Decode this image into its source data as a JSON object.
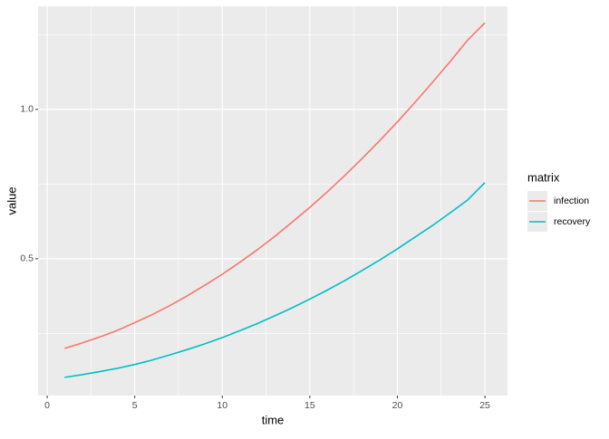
{
  "chart_data": {
    "type": "line",
    "x_label": "time",
    "y_label": "value",
    "x": [
      1,
      2,
      3,
      4,
      5,
      6,
      7,
      8,
      9,
      10,
      11,
      12,
      13,
      14,
      15,
      16,
      17,
      18,
      19,
      20,
      21,
      22,
      23,
      24,
      25
    ],
    "series": [
      {
        "name": "infection",
        "color": "#F8766D",
        "values": [
          0.2,
          0.218,
          0.238,
          0.26,
          0.286,
          0.313,
          0.343,
          0.376,
          0.411,
          0.448,
          0.488,
          0.53,
          0.575,
          0.623,
          0.672,
          0.724,
          0.779,
          0.836,
          0.896,
          0.958,
          1.023,
          1.09,
          1.159,
          1.231,
          1.29
        ]
      },
      {
        "name": "recovery",
        "color": "#00BFC4",
        "values": [
          0.103,
          0.112,
          0.122,
          0.133,
          0.146,
          0.161,
          0.178,
          0.196,
          0.215,
          0.236,
          0.259,
          0.283,
          0.309,
          0.336,
          0.365,
          0.395,
          0.427,
          0.461,
          0.496,
          0.533,
          0.572,
          0.611,
          0.653,
          0.696,
          0.755
        ]
      }
    ],
    "legend_title": "matrix",
    "legend": "right",
    "xlim": [
      -0.52,
      26.29
    ],
    "ylim": [
      0.042,
      1.345
    ],
    "xticks": [
      0,
      5,
      10,
      15,
      20,
      25
    ],
    "yticks": [
      0.5,
      {
        "value": 1.0,
        "label": "1.0"
      }
    ],
    "minor_xticks": [
      2.5,
      7.5,
      12.5,
      17.5,
      22.5
    ],
    "minor_yticks": [
      0.25,
      0.75,
      1.25
    ],
    "grid": true
  }
}
